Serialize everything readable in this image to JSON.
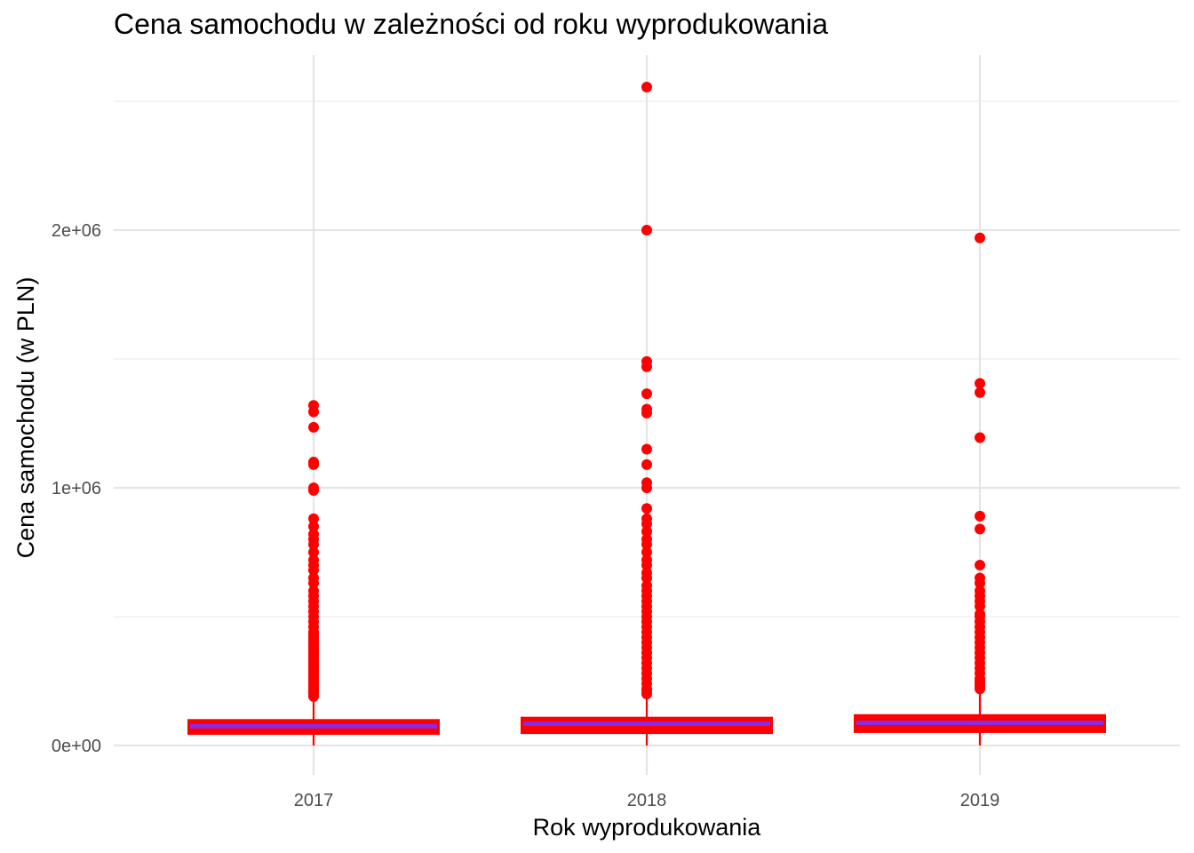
{
  "chart_data": {
    "type": "boxplot",
    "title": "Cena samochodu w zależności od roku wyprodukowania",
    "xlabel": "Rok wyprodukowania",
    "ylabel": "Cena samochodu (w PLN)",
    "categories": [
      "2017",
      "2018",
      "2019"
    ],
    "ylim": [
      -95000,
      2680000
    ],
    "yticks": [
      {
        "value": 0,
        "label": "0e+00"
      },
      {
        "value": 1000000,
        "label": "1e+06"
      },
      {
        "value": 2000000,
        "label": "2e+06"
      }
    ],
    "grid": true,
    "legend": "none",
    "colors": {
      "box_border": "#ff0000",
      "median": "#8a2be2",
      "outlier": "#ff0000",
      "grid": "#e5e5e5"
    },
    "boxes": [
      {
        "category": "2017",
        "q1": 45000,
        "median": 75000,
        "q3": 99000,
        "whisker_low": 0,
        "whisker_high": 180000,
        "outliers": [
          1320000,
          1295000,
          1235000,
          1100000,
          1090000,
          1000000,
          990000,
          880000,
          850000,
          820000,
          800000,
          780000,
          750000,
          720000,
          700000,
          680000,
          650000,
          630000,
          600000,
          580000,
          560000,
          540000,
          520000,
          500000,
          480000,
          460000,
          440000,
          430000,
          420000,
          410000,
          400000,
          390000,
          380000,
          370000,
          360000,
          350000,
          340000,
          330000,
          320000,
          310000,
          300000,
          290000,
          280000,
          270000,
          260000,
          250000,
          240000,
          230000,
          220000,
          210000,
          200000,
          190000
        ]
      },
      {
        "category": "2018",
        "q1": 48000,
        "median": 85000,
        "q3": 108000,
        "whisker_low": 0,
        "whisker_high": 195000,
        "outliers": [
          2555000,
          2000000,
          1490000,
          1470000,
          1365000,
          1305000,
          1290000,
          1150000,
          1090000,
          1020000,
          1000000,
          920000,
          880000,
          860000,
          830000,
          800000,
          780000,
          750000,
          720000,
          700000,
          670000,
          650000,
          620000,
          600000,
          580000,
          560000,
          540000,
          520000,
          500000,
          480000,
          460000,
          440000,
          420000,
          400000,
          380000,
          360000,
          340000,
          320000,
          300000,
          280000,
          260000,
          240000,
          220000,
          210000,
          200000
        ]
      },
      {
        "category": "2019",
        "q1": 52000,
        "median": 88000,
        "q3": 118000,
        "whisker_low": 0,
        "whisker_high": 215000,
        "outliers": [
          1970000,
          1405000,
          1370000,
          1195000,
          890000,
          840000,
          700000,
          650000,
          630000,
          600000,
          580000,
          560000,
          540000,
          510000,
          500000,
          480000,
          460000,
          440000,
          420000,
          400000,
          380000,
          360000,
          340000,
          320000,
          300000,
          280000,
          260000,
          250000,
          240000,
          230000,
          220000
        ]
      }
    ]
  }
}
